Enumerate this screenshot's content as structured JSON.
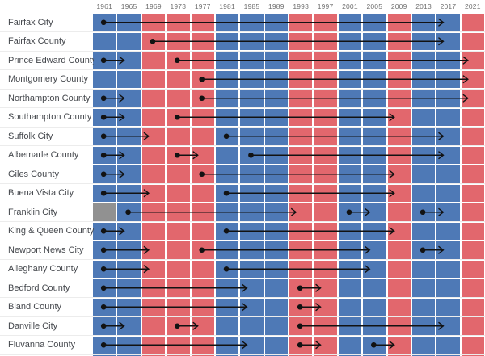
{
  "chart_data": {
    "type": "heatmap",
    "x_tick_labels": [
      "1961",
      "1965",
      "1969",
      "1973",
      "1977",
      "1981",
      "1985",
      "1989",
      "1993",
      "1997",
      "2001",
      "2005",
      "2009",
      "2013",
      "2017",
      "2021"
    ],
    "years": [
      1961,
      1965,
      1969,
      1973,
      1977,
      1981,
      1985,
      1989,
      1993,
      1997,
      2001,
      2005,
      2009,
      2013,
      2017,
      2021
    ],
    "column_winner_party": [
      "D",
      "D",
      "R",
      "R",
      "R",
      "D",
      "D",
      "D",
      "R",
      "R",
      "D",
      "D",
      "R",
      "D",
      "D",
      "R"
    ],
    "legend": "none",
    "grid": "white gaps between cells",
    "colors": {
      "democrat_blue": "#4e79b6",
      "republican_red": "#e2676d",
      "no_data_gray": "#919191",
      "arrow_black": "#121212",
      "year_label_gray": "#6f6f6f",
      "row_label_dark": "#45484d",
      "row_separator": "#ececec",
      "background": "#ffffff"
    },
    "rows": [
      {
        "label": "Fairfax City",
        "no_data_years": [],
        "streaks": [
          {
            "from": 1961,
            "to": 2017
          }
        ]
      },
      {
        "label": "Fairfax County",
        "no_data_years": [],
        "streaks": [
          {
            "from": 1969,
            "to": 2017
          }
        ]
      },
      {
        "label": "Prince Edward County",
        "no_data_years": [],
        "streaks": [
          {
            "from": 1961,
            "to": 1965
          },
          {
            "from": 1973,
            "to": 2021
          }
        ]
      },
      {
        "label": "Montgomery County",
        "no_data_years": [],
        "streaks": [
          {
            "from": 1977,
            "to": 2021
          }
        ]
      },
      {
        "label": "Northampton County",
        "no_data_years": [],
        "streaks": [
          {
            "from": 1961,
            "to": 1965
          },
          {
            "from": 1977,
            "to": 2021
          }
        ]
      },
      {
        "label": "Southampton County",
        "no_data_years": [],
        "streaks": [
          {
            "from": 1961,
            "to": 1965
          },
          {
            "from": 1973,
            "to": 2009
          }
        ]
      },
      {
        "label": "Suffolk City",
        "no_data_years": [],
        "streaks": [
          {
            "from": 1961,
            "to": 1969
          },
          {
            "from": 1981,
            "to": 2017
          }
        ]
      },
      {
        "label": "Albemarle County",
        "no_data_years": [],
        "streaks": [
          {
            "from": 1961,
            "to": 1965
          },
          {
            "from": 1973,
            "to": 1977
          },
          {
            "from": 1985,
            "to": 2017
          }
        ]
      },
      {
        "label": "Giles County",
        "no_data_years": [],
        "streaks": [
          {
            "from": 1961,
            "to": 1965
          },
          {
            "from": 1977,
            "to": 2009
          }
        ]
      },
      {
        "label": "Buena Vista City",
        "no_data_years": [],
        "streaks": [
          {
            "from": 1961,
            "to": 1969
          },
          {
            "from": 1981,
            "to": 2009
          }
        ]
      },
      {
        "label": "Franklin City",
        "no_data_years": [
          1961
        ],
        "streaks": [
          {
            "from": 1965,
            "to": 1993
          },
          {
            "from": 2001,
            "to": 2005
          },
          {
            "from": 2013,
            "to": 2017
          }
        ]
      },
      {
        "label": "King & Queen County",
        "no_data_years": [],
        "streaks": [
          {
            "from": 1961,
            "to": 1965
          },
          {
            "from": 1981,
            "to": 2009
          }
        ]
      },
      {
        "label": "Newport News City",
        "no_data_years": [],
        "streaks": [
          {
            "from": 1961,
            "to": 1969
          },
          {
            "from": 1977,
            "to": 2005
          },
          {
            "from": 2013,
            "to": 2017
          }
        ]
      },
      {
        "label": "Alleghany County",
        "no_data_years": [],
        "streaks": [
          {
            "from": 1961,
            "to": 1969
          },
          {
            "from": 1981,
            "to": 2005
          }
        ]
      },
      {
        "label": "Bedford County",
        "no_data_years": [],
        "streaks": [
          {
            "from": 1961,
            "to": 1985
          },
          {
            "from": 1993,
            "to": 1997
          }
        ]
      },
      {
        "label": "Bland County",
        "no_data_years": [],
        "streaks": [
          {
            "from": 1961,
            "to": 1985
          },
          {
            "from": 1993,
            "to": 1997
          }
        ]
      },
      {
        "label": "Danville City",
        "no_data_years": [],
        "streaks": [
          {
            "from": 1961,
            "to": 1965
          },
          {
            "from": 1973,
            "to": 1977
          },
          {
            "from": 1993,
            "to": 2017
          }
        ]
      },
      {
        "label": "Fluvanna County",
        "no_data_years": [],
        "streaks": [
          {
            "from": 1961,
            "to": 1985
          },
          {
            "from": 1993,
            "to": 1997
          },
          {
            "from": 2005,
            "to": 2009
          }
        ]
      }
    ],
    "partial_row_clipped_at_bottom": true
  }
}
